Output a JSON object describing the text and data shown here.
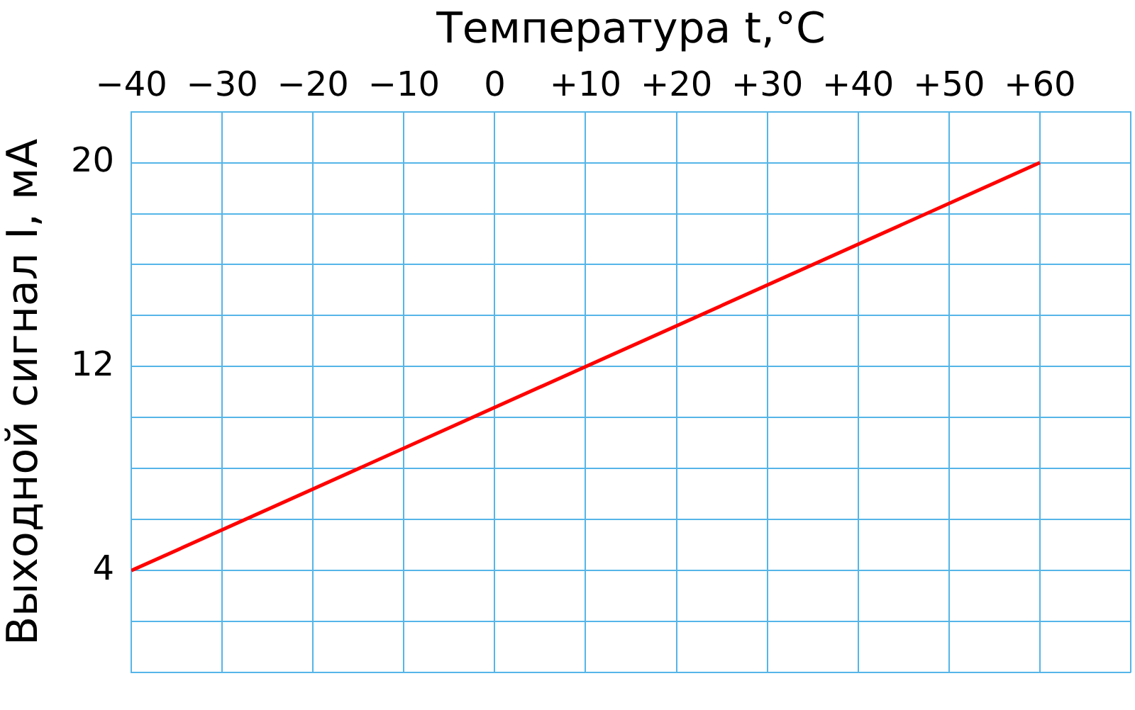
{
  "chart_data": {
    "type": "line",
    "xlabel": "Температура t,°C",
    "ylabel": "Выходной сигнал I, мА",
    "series": [
      {
        "color": "#ff0000",
        "x": [
          -40,
          60
        ],
        "values": [
          4,
          20
        ]
      }
    ],
    "xlim": [
      -40,
      70
    ],
    "xticks": [
      {
        "value": -40,
        "label": "−40"
      },
      {
        "value": -30,
        "label": "−30"
      },
      {
        "value": -20,
        "label": "−20"
      },
      {
        "value": -10,
        "label": "−10"
      },
      0,
      {
        "value": 10,
        "label": "+10"
      },
      {
        "value": 20,
        "label": "+20"
      },
      {
        "value": 30,
        "label": "+30"
      },
      {
        "value": 40,
        "label": "+40"
      },
      {
        "value": 50,
        "label": "+50"
      },
      {
        "value": 60,
        "label": "+60"
      },
      {
        "value": 70,
        "label": null
      }
    ],
    "ylim": [
      0,
      22
    ],
    "yticks": [
      {
        "value": 0,
        "label": null
      },
      {
        "value": 2,
        "label": null
      },
      4,
      {
        "value": 6,
        "label": null
      },
      {
        "value": 8,
        "label": null
      },
      {
        "value": 10,
        "label": null
      },
      12,
      {
        "value": 14,
        "label": null
      },
      {
        "value": 16,
        "label": null
      },
      {
        "value": 18,
        "label": null
      },
      20,
      {
        "value": 22,
        "label": null
      }
    ],
    "grid": true,
    "marker": "none",
    "line_style": "solid",
    "legend": false
  }
}
